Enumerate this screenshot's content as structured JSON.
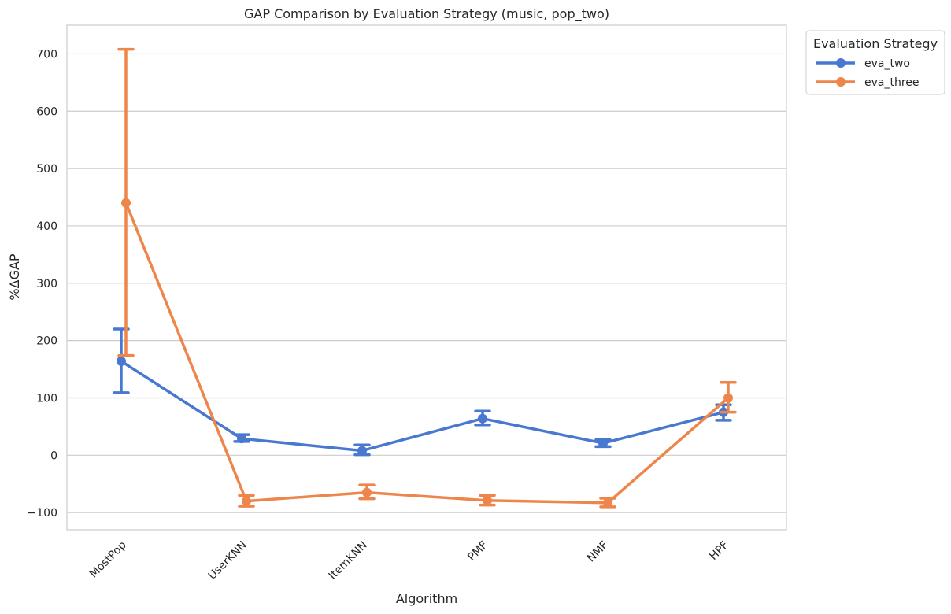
{
  "chart_data": {
    "type": "line",
    "title": "GAP Comparison by Evaluation Strategy (music, pop_two)",
    "xlabel": "Algorithm",
    "ylabel": "%ΔGAP",
    "categories": [
      "MostPop",
      "UserKNN",
      "ItemKNN",
      "PMF",
      "NMF",
      "HPF"
    ],
    "ylim": [
      -130,
      750
    ],
    "yticks": [
      -100,
      0,
      100,
      200,
      300,
      400,
      500,
      600,
      700
    ],
    "ytick_labels": [
      "−100",
      "0",
      "100",
      "200",
      "300",
      "400",
      "500",
      "600",
      "700"
    ],
    "grid": "horizontal",
    "error_bars": true,
    "legend": {
      "title": "Evaluation Strategy",
      "placement": "outside-top-right"
    },
    "series": [
      {
        "name": "eva_two",
        "color": "#4878d0",
        "values": [
          164,
          29,
          8,
          64,
          21,
          75
        ],
        "err_low": [
          109,
          24,
          1,
          53,
          15,
          61
        ],
        "err_high": [
          220,
          36,
          18,
          77,
          27,
          88
        ]
      },
      {
        "name": "eva_three",
        "color": "#ee854a",
        "values": [
          440,
          -80,
          -65,
          -79,
          -83,
          100
        ],
        "err_low": [
          174,
          -89,
          -76,
          -87,
          -90,
          75
        ],
        "err_high": [
          708,
          -70,
          -52,
          -70,
          -75,
          127
        ]
      }
    ]
  }
}
